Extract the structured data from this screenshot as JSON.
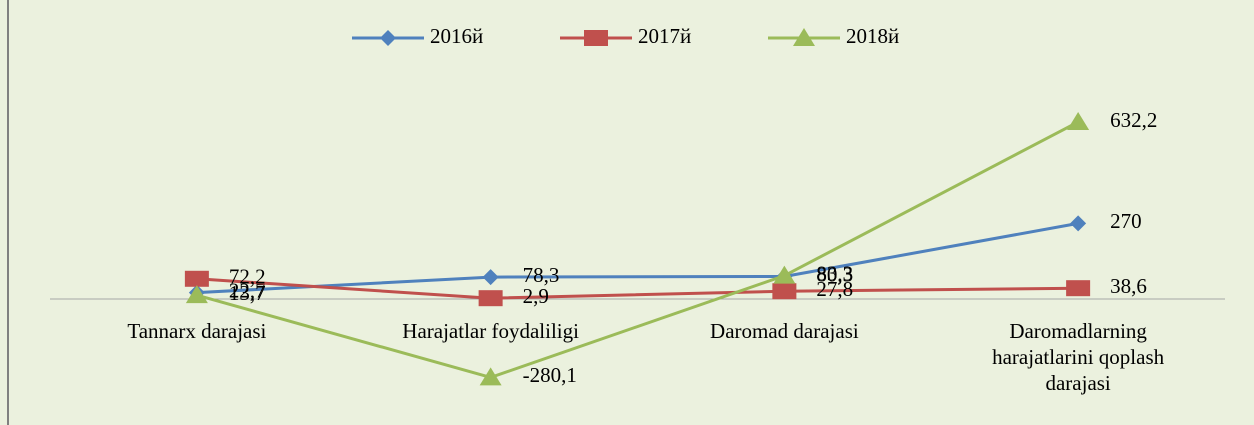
{
  "chart_data": {
    "type": "line",
    "categories": [
      "Tannarx darajasi",
      "Harajatlar foydaliligi",
      "Daromad darajasi",
      "Daromadlarning harajatlarini qoplash darajasi"
    ],
    "series": [
      {
        "name": "2016й",
        "color": "#4f81bd",
        "marker": "diamond",
        "values": [
          22.7,
          78.3,
          80.3,
          270
        ],
        "value_labels": [
          "22,7",
          "78,3",
          "80,3",
          "270"
        ]
      },
      {
        "name": "2017й",
        "color": "#c0504d",
        "marker": "square",
        "values": [
          72.2,
          2.9,
          27.8,
          38.6
        ],
        "value_labels": [
          "72,2",
          "2,9",
          "27,8",
          "38,6"
        ]
      },
      {
        "name": "2018й",
        "color": "#9bbb59",
        "marker": "triangle",
        "values": [
          13.7,
          -280.1,
          83.3,
          632.2
        ],
        "value_labels": [
          "13,7",
          "-280,1",
          "83,3",
          "632,2"
        ]
      }
    ],
    "ylim": [
      -350,
      700
    ],
    "legend": "top"
  }
}
